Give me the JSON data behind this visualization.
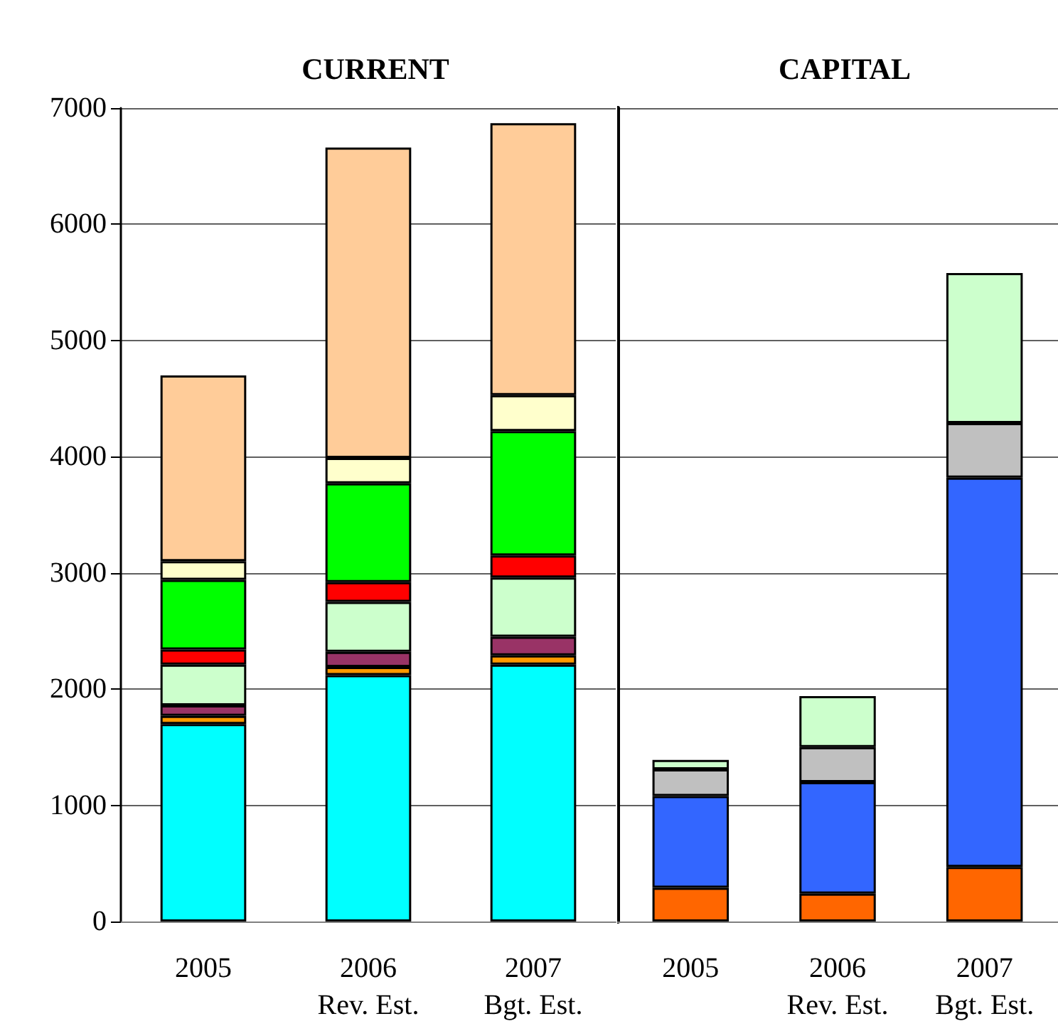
{
  "chart_data": [
    {
      "type": "bar",
      "title": "CURRENT",
      "categories": [
        "2005",
        "2006\nRev. Est.",
        "2007\nBgt. Est."
      ],
      "stacked": true,
      "ylim": [
        0,
        7000
      ],
      "yticks": [
        0,
        1000,
        2000,
        3000,
        4000,
        5000,
        6000,
        7000
      ],
      "grid": "y",
      "series": [
        {
          "color": "#00ffff",
          "values": [
            1700,
            2120,
            2210
          ]
        },
        {
          "color": "#ff9900",
          "values": [
            70,
            70,
            80
          ]
        },
        {
          "color": "#993366",
          "values": [
            90,
            130,
            160
          ]
        },
        {
          "color": "#ccffcc",
          "values": [
            350,
            430,
            510
          ]
        },
        {
          "color": "#ff0000",
          "values": [
            130,
            170,
            190
          ]
        },
        {
          "color": "#00ff00",
          "values": [
            600,
            850,
            1070
          ]
        },
        {
          "color": "#ffffcc",
          "values": [
            160,
            220,
            310
          ]
        },
        {
          "color": "#ffcc99",
          "values": [
            1600,
            2670,
            2340
          ]
        }
      ]
    },
    {
      "type": "bar",
      "title": "CAPITAL",
      "categories": [
        "2005",
        "2006\nRev. Est.",
        "2007\nBgt. Est."
      ],
      "stacked": true,
      "ylim": [
        0,
        7000
      ],
      "yticks": [
        0,
        1000,
        2000,
        3000,
        4000,
        5000,
        6000,
        7000
      ],
      "grid": "y",
      "tick_labels": "x",
      "series": [
        {
          "color": "#ff6600",
          "values": [
            290,
            240,
            470
          ]
        },
        {
          "color": "#3366ff",
          "values": [
            790,
            960,
            3350
          ]
        },
        {
          "color": "#c0c0c0",
          "values": [
            230,
            300,
            470
          ]
        },
        {
          "color": "#ccffcc",
          "values": [
            80,
            440,
            1290
          ]
        }
      ]
    }
  ]
}
